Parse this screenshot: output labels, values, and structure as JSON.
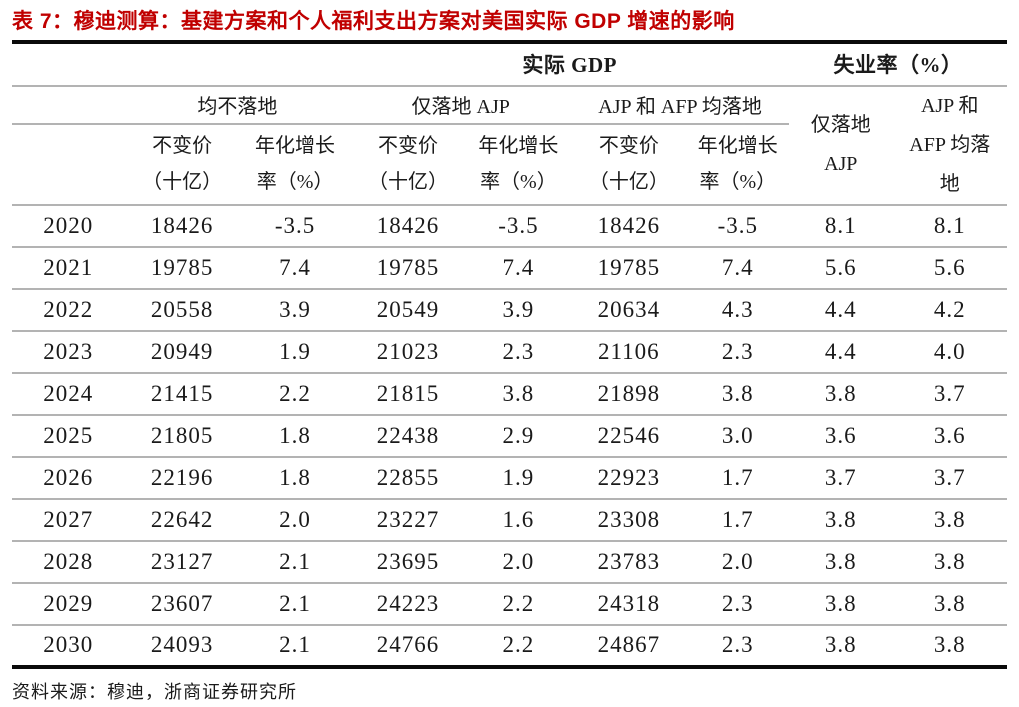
{
  "page": {
    "title": "表 7：穆迪测算：基建方案和个人福利支出方案对美国实际 GDP 增速的影响",
    "source_note": "资料来源：穆迪，浙商证券研究所"
  },
  "colors": {
    "title_red": "#C00000",
    "rule_black": "#0a0a0a",
    "grid_gray": "#b3b3b3"
  },
  "table": {
    "group_headers": {
      "gdp": "实际 GDP",
      "unemployment": "失业率（%）"
    },
    "scenario_headers": {
      "none_landed": "均不落地",
      "ajp_only": "仅落地 AJP",
      "ajp_and_afp": "AJP 和 AFP 均落地"
    },
    "unemployment_headers": {
      "ajp_only_lines": [
        "仅落地",
        "AJP"
      ],
      "ajp_and_afp_lines": [
        "AJP 和",
        "AFP 均落",
        "地"
      ]
    },
    "metric_headers": {
      "level_lines": [
        "不变价",
        "（十亿）"
      ],
      "growth_lines": [
        "年化增长",
        "率（%）"
      ]
    },
    "rows": [
      [
        "2020",
        "18426",
        "-3.5",
        "18426",
        "-3.5",
        "18426",
        "-3.5",
        "8.1",
        "8.1"
      ],
      [
        "2021",
        "19785",
        "7.4",
        "19785",
        "7.4",
        "19785",
        "7.4",
        "5.6",
        "5.6"
      ],
      [
        "2022",
        "20558",
        "3.9",
        "20549",
        "3.9",
        "20634",
        "4.3",
        "4.4",
        "4.2"
      ],
      [
        "2023",
        "20949",
        "1.9",
        "21023",
        "2.3",
        "21106",
        "2.3",
        "4.4",
        "4.0"
      ],
      [
        "2024",
        "21415",
        "2.2",
        "21815",
        "3.8",
        "21898",
        "3.8",
        "3.8",
        "3.7"
      ],
      [
        "2025",
        "21805",
        "1.8",
        "22438",
        "2.9",
        "22546",
        "3.0",
        "3.6",
        "3.6"
      ],
      [
        "2026",
        "22196",
        "1.8",
        "22855",
        "1.9",
        "22923",
        "1.7",
        "3.7",
        "3.7"
      ],
      [
        "2027",
        "22642",
        "2.0",
        "23227",
        "1.6",
        "23308",
        "1.7",
        "3.8",
        "3.8"
      ],
      [
        "2028",
        "23127",
        "2.1",
        "23695",
        "2.0",
        "23783",
        "2.0",
        "3.8",
        "3.8"
      ],
      [
        "2029",
        "23607",
        "2.1",
        "24223",
        "2.2",
        "24318",
        "2.3",
        "3.8",
        "3.8"
      ],
      [
        "2030",
        "24093",
        "2.1",
        "24766",
        "2.2",
        "24867",
        "2.3",
        "3.8",
        "3.8"
      ]
    ]
  }
}
